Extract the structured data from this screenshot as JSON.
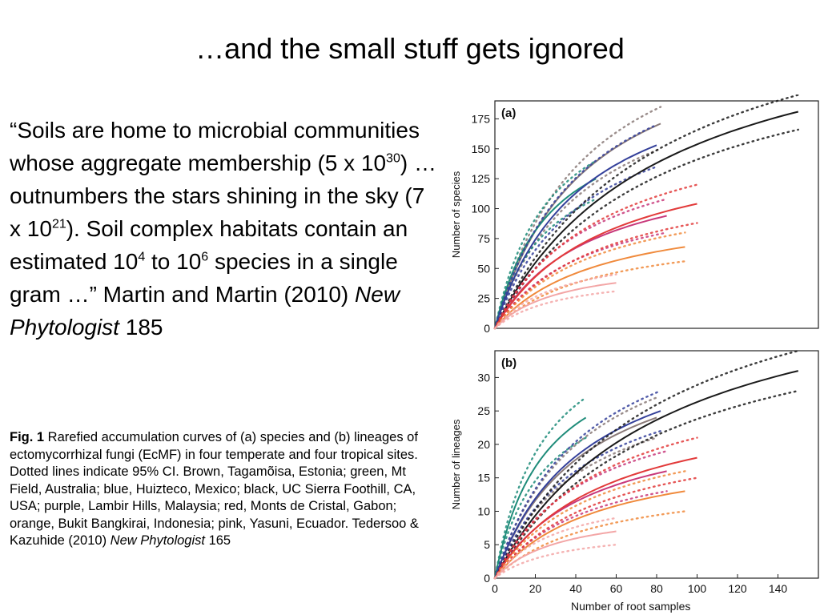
{
  "slide": {
    "title": "…and the small stuff gets ignored"
  },
  "quote": {
    "p1": "“Soils are home to microbial communities whose aggregate membership (5 x 10",
    "sup1": "30",
    "p2": ") … outnumbers the stars shining in the sky (7 x 10",
    "sup2": "21",
    "p3": "). Soil complex habitats contain an estimated 10",
    "sup3": "4",
    "p4": " to 10",
    "sup4": "6",
    "p5": " species in a single gram …” Martin and Martin (2010) ",
    "journal": "New Phytologist",
    "p6": " 185"
  },
  "caption": {
    "label": "Fig. 1",
    "text": " Rarefied accumulation curves of (a) species and (b) lineages of ectomycorrhizal fungi (EcMF) in four temperate and four tropical sites. Dotted lines indicate 95% CI. Brown, Tagamõisa, Estonia; green, Mt Field, Australia; blue, Huizteco, Mexico; black, UC Sierra Foothill, CA, USA; purple, Lambir Hills, Malaysia; red, Monts de Cristal, Gabon; orange, Bukit Bangkirai, Indonesia; pink, Yasuni, Ecuador. Tedersoo & Kazuhide (2010) ",
    "journal": "New Phytologist",
    "tail": " 165"
  },
  "chart_data": [
    {
      "panel_label": "(a)",
      "type": "line",
      "xlabel": "",
      "ylabel": "Number of species",
      "xlim": [
        0,
        160
      ],
      "ylim": [
        0,
        190
      ],
      "y_ticks": [
        0,
        25,
        50,
        75,
        100,
        125,
        150,
        175
      ],
      "series": [
        {
          "color": "#8a7a78",
          "max_x": 82,
          "final": 171,
          "ci_low": 150,
          "ci_high": 185
        },
        {
          "color": "#1f8c7a",
          "max_x": 50,
          "final": 125,
          "ci_low": 108,
          "ci_high": 140
        },
        {
          "color": "#34409a",
          "max_x": 80,
          "final": 153,
          "ci_low": 135,
          "ci_high": 170
        },
        {
          "color": "#1a1a1a",
          "max_x": 150,
          "final": 181,
          "ci_low": 166,
          "ci_high": 195
        },
        {
          "color": "#c8387a",
          "max_x": 85,
          "final": 94,
          "ci_low": 80,
          "ci_high": 108
        },
        {
          "color": "#e23a3a",
          "max_x": 100,
          "final": 104,
          "ci_low": 88,
          "ci_high": 120
        },
        {
          "color": "#f08a3c",
          "max_x": 94,
          "final": 68,
          "ci_low": 56,
          "ci_high": 80
        },
        {
          "color": "#f3a6a6",
          "max_x": 60,
          "final": 38,
          "ci_low": 31,
          "ci_high": 45
        }
      ]
    },
    {
      "panel_label": "(b)",
      "type": "line",
      "xlabel": "Number of root samples",
      "ylabel": "Number of lineages",
      "xlim": [
        0,
        160
      ],
      "ylim": [
        0,
        34
      ],
      "x_ticks": [
        0,
        20,
        40,
        60,
        80,
        100,
        120,
        140
      ],
      "y_ticks": [
        0,
        5,
        10,
        15,
        20,
        25,
        30
      ],
      "series": [
        {
          "color": "#8a7a78",
          "max_x": 80,
          "final": 24,
          "ci_low": 21,
          "ci_high": 27
        },
        {
          "color": "#1f8c7a",
          "max_x": 45,
          "final": 24,
          "ci_low": 21,
          "ci_high": 27
        },
        {
          "color": "#34409a",
          "max_x": 82,
          "final": 25,
          "ci_low": 22,
          "ci_high": 28
        },
        {
          "color": "#1a1a1a",
          "max_x": 150,
          "final": 31,
          "ci_low": 28,
          "ci_high": 34
        },
        {
          "color": "#c8387a",
          "max_x": 85,
          "final": 16,
          "ci_low": 13,
          "ci_high": 19
        },
        {
          "color": "#e23a3a",
          "max_x": 100,
          "final": 18,
          "ci_low": 15,
          "ci_high": 21
        },
        {
          "color": "#f08a3c",
          "max_x": 94,
          "final": 13,
          "ci_low": 10,
          "ci_high": 16
        },
        {
          "color": "#f3a6a6",
          "max_x": 60,
          "final": 7,
          "ci_low": 5,
          "ci_high": 9
        }
      ]
    }
  ]
}
